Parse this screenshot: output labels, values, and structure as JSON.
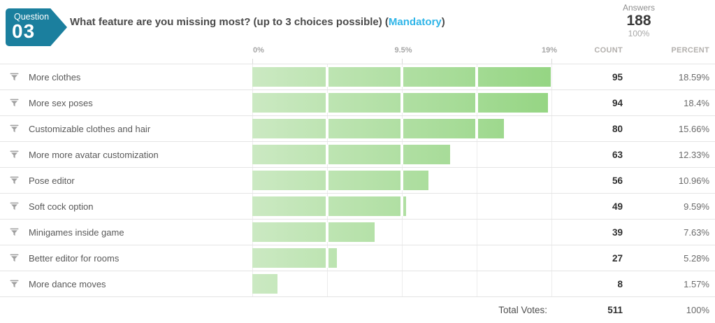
{
  "badge": {
    "label": "Question",
    "number": "03"
  },
  "title": {
    "main": "What feature are you missing most? (up to 3 choices possible)",
    "paren_open": " (",
    "mandatory": "Mandatory",
    "paren_close": ")"
  },
  "answers": {
    "label": "Answers",
    "value": "188",
    "percent": "100%"
  },
  "axis_ticks": [
    "0%",
    "9.5%",
    "19%"
  ],
  "columns": {
    "count": "COUNT",
    "percent": "PERCENT"
  },
  "rows": [
    {
      "label": "More clothes",
      "count": 95,
      "percent": "18.59%"
    },
    {
      "label": "More sex poses",
      "count": 94,
      "percent": "18.4%"
    },
    {
      "label": "Customizable clothes and hair",
      "count": 80,
      "percent": "15.66%"
    },
    {
      "label": "More more avatar customization",
      "count": 63,
      "percent": "12.33%"
    },
    {
      "label": "Pose editor",
      "count": 56,
      "percent": "10.96%"
    },
    {
      "label": "Soft cock option",
      "count": 49,
      "percent": "9.59%"
    },
    {
      "label": "Minigames inside game",
      "count": 39,
      "percent": "7.63%"
    },
    {
      "label": "Better editor for rooms",
      "count": 27,
      "percent": "5.28%"
    },
    {
      "label": "More dance moves",
      "count": 8,
      "percent": "1.57%"
    }
  ],
  "footer": {
    "label": "Total Votes:",
    "count": "511",
    "percent": "100%"
  },
  "colors": {
    "badge": "#1b7f9e",
    "mandatory": "#2fb5e8",
    "bar_gradient_start": "#cbe9c2",
    "bar_gradient_end": "#95d583",
    "gridline": "#ececec",
    "separator": "#e4e4e4"
  },
  "chart_data": {
    "type": "bar",
    "orientation": "horizontal",
    "title": "What feature are you missing most? (up to 3 choices possible) (Mandatory)",
    "categories": [
      "More clothes",
      "More sex poses",
      "Customizable clothes and hair",
      "More more avatar customization",
      "Pose editor",
      "Soft cock option",
      "Minigames inside game",
      "Better editor for rooms",
      "More dance moves"
    ],
    "series": [
      {
        "name": "Count",
        "values": [
          95,
          94,
          80,
          63,
          56,
          49,
          39,
          27,
          8
        ]
      },
      {
        "name": "Percent",
        "values": [
          18.59,
          18.4,
          15.66,
          12.33,
          10.96,
          9.59,
          7.63,
          5.28,
          1.57
        ]
      }
    ],
    "x_axis_ticks": [
      "0%",
      "9.5%",
      "19%"
    ],
    "xlim": [
      0,
      19
    ],
    "grid": true,
    "answers": 188,
    "total_votes": 511
  }
}
